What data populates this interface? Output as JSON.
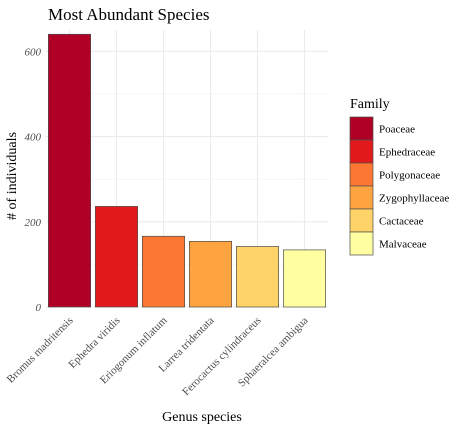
{
  "chart_data": {
    "type": "bar",
    "title": "Most Abundant Species",
    "xlabel": "Genus species",
    "ylabel": "# of individuals",
    "categories": [
      "Bromus madritensis",
      "Ephedra viridis",
      "Eriogonum inflatum",
      "Larrea tridentata",
      "Ferocactus cylindraceus",
      "Sphaeralcea ambigua"
    ],
    "values": [
      640,
      236,
      166,
      154,
      142,
      134
    ],
    "families": [
      "Poaceae",
      "Ephedraceae",
      "Polygonaceae",
      "Zygophyllaceae",
      "Cactaceae",
      "Malvaceae"
    ],
    "ylim": [
      0,
      650
    ],
    "yticks": [
      0,
      200,
      400,
      600
    ],
    "grid": true,
    "legend": {
      "title": "Family",
      "placement": "right",
      "entries": [
        "Poaceae",
        "Ephedraceae",
        "Polygonaceae",
        "Zygophyllaceae",
        "Cactaceae",
        "Malvaceae"
      ]
    },
    "colors": [
      "#b10026",
      "#e31a1c",
      "#fc7732",
      "#fda33f",
      "#fed468",
      "#ffffa2"
    ]
  }
}
